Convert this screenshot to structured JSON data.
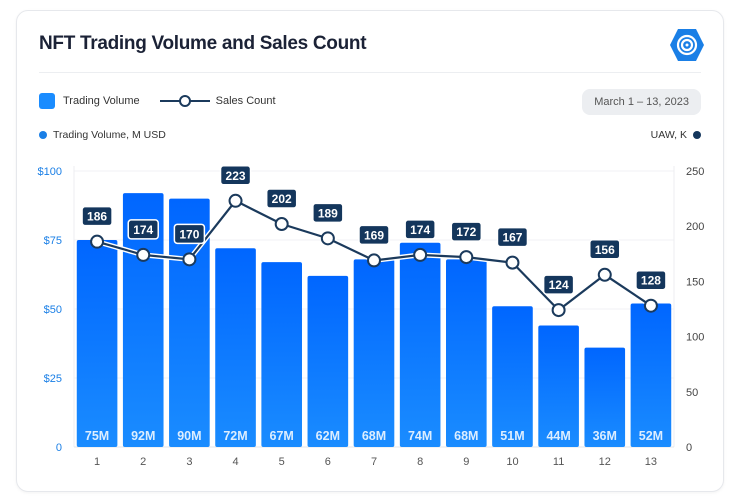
{
  "header": {
    "title": "NFT Trading Volume and Sales Count",
    "logo_icon": "dappradar-logo",
    "date_range": "March 1 – 13, 2023"
  },
  "legend": {
    "bars": "Trading Volume",
    "line": "Sales Count"
  },
  "axes": {
    "left_title": "Trading Volume, M USD",
    "right_title": "UAW, K"
  },
  "colors": {
    "bar": "#1a8cff",
    "bar_top": "#0066ff",
    "line": "#1b3a5c",
    "label_bg": "#14365c",
    "left_axis": "#1a7fe6"
  },
  "chart_data": {
    "type": "bar+line",
    "title": "NFT Trading Volume and Sales Count",
    "categories": [
      "1",
      "2",
      "3",
      "4",
      "5",
      "6",
      "7",
      "8",
      "9",
      "10",
      "11",
      "12",
      "13"
    ],
    "series": [
      {
        "name": "Trading Volume",
        "type": "bar",
        "axis": "left",
        "values": [
          75,
          92,
          90,
          72,
          67,
          62,
          68,
          74,
          68,
          51,
          44,
          36,
          52
        ],
        "labels": [
          "75M",
          "92M",
          "90M",
          "72M",
          "67M",
          "62M",
          "68M",
          "74M",
          "68M",
          "51M",
          "44M",
          "36M",
          "52M"
        ]
      },
      {
        "name": "Sales Count",
        "type": "line",
        "axis": "right",
        "values": [
          186,
          174,
          170,
          223,
          202,
          189,
          169,
          174,
          172,
          167,
          124,
          156,
          128
        ]
      }
    ],
    "left_axis": {
      "label": "Trading Volume, M USD",
      "range": [
        0,
        100
      ],
      "ticks": [
        "0",
        "$25",
        "$50",
        "$75",
        "$100"
      ]
    },
    "right_axis": {
      "label": "UAW, K",
      "range": [
        0,
        250
      ],
      "ticks": [
        "0",
        "50",
        "100",
        "150",
        "200",
        "250"
      ]
    },
    "grid": true
  }
}
